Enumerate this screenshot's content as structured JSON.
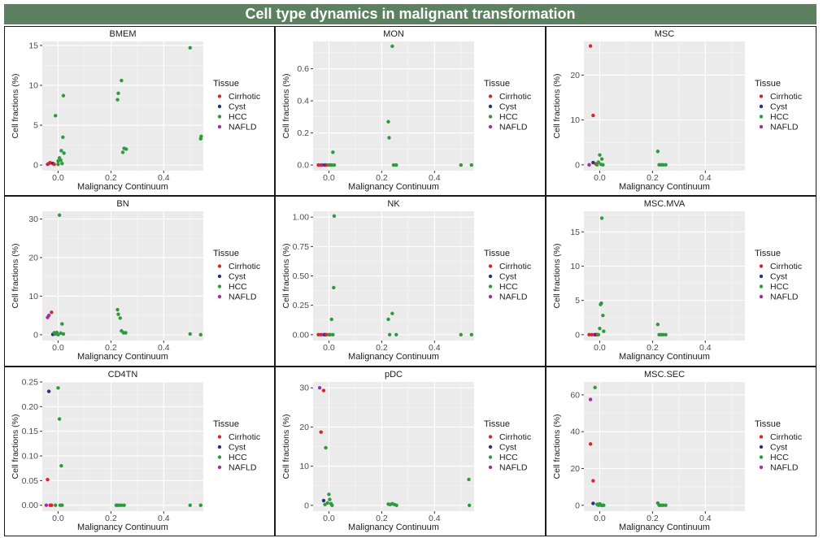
{
  "title": "Cell type dynamics in malignant transformation",
  "colors": {
    "Cirrhotic": "#d7262b",
    "Cyst": "#2b2f7e",
    "HCC": "#2e9a3e",
    "NAFLD": "#a32ea3",
    "title_bg": "#5c8160",
    "panel_bg": "#ebebeb"
  },
  "legend": {
    "title": "Tissue",
    "entries": [
      "Cirrhotic",
      "Cyst",
      "HCC",
      "NAFLD"
    ]
  },
  "chart_data": [
    {
      "type": "scatter",
      "title": "BMEM",
      "xlabel": "Malignancy Continuum",
      "ylabel": "Cell fractions (%)",
      "xlim": [
        -0.06,
        0.55
      ],
      "ylim": [
        -0.7,
        15.5
      ],
      "xticks": [
        0.0,
        0.2,
        0.4
      ],
      "xtick_labels": [
        "0.0",
        "0.2",
        "0.4"
      ],
      "yticks": [
        0,
        5,
        10,
        15
      ],
      "ytick_labels": [
        "0",
        "5",
        "10",
        "15"
      ],
      "points": [
        {
          "t": "NAFLD",
          "x": -0.04,
          "y": 0.1
        },
        {
          "t": "Cirrhotic",
          "x": -0.035,
          "y": 0.2
        },
        {
          "t": "Cirrhotic",
          "x": -0.03,
          "y": 0.3
        },
        {
          "t": "Cyst",
          "x": -0.02,
          "y": 0.2
        },
        {
          "t": "Cirrhotic",
          "x": -0.015,
          "y": 0.1
        },
        {
          "t": "HCC",
          "x": -0.01,
          "y": 6.2
        },
        {
          "t": "HCC",
          "x": 0.0,
          "y": 0.1
        },
        {
          "t": "HCC",
          "x": 0.0,
          "y": 0.5
        },
        {
          "t": "HCC",
          "x": 0.005,
          "y": 0.9
        },
        {
          "t": "HCC",
          "x": 0.01,
          "y": 0.6
        },
        {
          "t": "HCC",
          "x": 0.012,
          "y": 1.8
        },
        {
          "t": "HCC",
          "x": 0.015,
          "y": 0.2
        },
        {
          "t": "HCC",
          "x": 0.018,
          "y": 3.5
        },
        {
          "t": "HCC",
          "x": 0.02,
          "y": 8.7
        },
        {
          "t": "HCC",
          "x": 0.022,
          "y": 1.5
        },
        {
          "t": "HCC",
          "x": 0.225,
          "y": 8.2
        },
        {
          "t": "HCC",
          "x": 0.228,
          "y": 9.0
        },
        {
          "t": "HCC",
          "x": 0.24,
          "y": 10.6
        },
        {
          "t": "HCC",
          "x": 0.245,
          "y": 1.6
        },
        {
          "t": "HCC",
          "x": 0.25,
          "y": 2.1
        },
        {
          "t": "HCC",
          "x": 0.258,
          "y": 2.0
        },
        {
          "t": "HCC",
          "x": 0.5,
          "y": 14.7
        },
        {
          "t": "HCC",
          "x": 0.54,
          "y": 3.3
        },
        {
          "t": "HCC",
          "x": 0.542,
          "y": 3.6
        }
      ]
    },
    {
      "type": "scatter",
      "title": "MON",
      "xlabel": "Malignancy Continuum",
      "ylabel": "Cell fractions (%)",
      "xlim": [
        -0.06,
        0.55
      ],
      "ylim": [
        -0.035,
        0.77
      ],
      "xticks": [
        0.0,
        0.2,
        0.4
      ],
      "xtick_labels": [
        "0.0",
        "0.2",
        "0.4"
      ],
      "yticks": [
        0.0,
        0.2,
        0.4,
        0.6
      ],
      "ytick_labels": [
        "0.0",
        "0.2",
        "0.4",
        "0.6"
      ],
      "points": [
        {
          "t": "Cirrhotic",
          "x": -0.04,
          "y": 0.0
        },
        {
          "t": "Cirrhotic",
          "x": -0.03,
          "y": 0.0
        },
        {
          "t": "NAFLD",
          "x": -0.025,
          "y": 0.0
        },
        {
          "t": "Cyst",
          "x": -0.015,
          "y": 0.0
        },
        {
          "t": "Cirrhotic",
          "x": -0.01,
          "y": 0.0
        },
        {
          "t": "HCC",
          "x": 0.0,
          "y": 0.0
        },
        {
          "t": "HCC",
          "x": 0.005,
          "y": 0.0
        },
        {
          "t": "HCC",
          "x": 0.01,
          "y": 0.0
        },
        {
          "t": "HCC",
          "x": 0.015,
          "y": 0.08
        },
        {
          "t": "HCC",
          "x": 0.02,
          "y": 0.0
        },
        {
          "t": "HCC",
          "x": 0.225,
          "y": 0.27
        },
        {
          "t": "HCC",
          "x": 0.228,
          "y": 0.17
        },
        {
          "t": "HCC",
          "x": 0.24,
          "y": 0.74
        },
        {
          "t": "HCC",
          "x": 0.245,
          "y": 0.0
        },
        {
          "t": "HCC",
          "x": 0.255,
          "y": 0.0
        },
        {
          "t": "HCC",
          "x": 0.5,
          "y": 0.0
        },
        {
          "t": "HCC",
          "x": 0.54,
          "y": 0.0
        }
      ]
    },
    {
      "type": "scatter",
      "title": "MSC",
      "xlabel": "Malignancy Continuum",
      "ylabel": "Cell fractions (%)",
      "xlim": [
        -0.06,
        0.55
      ],
      "ylim": [
        -1.3,
        27.5
      ],
      "xticks": [
        0.0,
        0.2,
        0.4
      ],
      "xtick_labels": [
        "0.0",
        "0.2",
        "0.4"
      ],
      "yticks": [
        0,
        10,
        20
      ],
      "ytick_labels": [
        "0",
        "10",
        "20"
      ],
      "points": [
        {
          "t": "NAFLD",
          "x": -0.04,
          "y": 0.0
        },
        {
          "t": "Cirrhotic",
          "x": -0.035,
          "y": 26.5
        },
        {
          "t": "Cirrhotic",
          "x": -0.025,
          "y": 11.0
        },
        {
          "t": "Cyst",
          "x": -0.025,
          "y": 0.5
        },
        {
          "t": "Cirrhotic",
          "x": -0.015,
          "y": 0.2
        },
        {
          "t": "HCC",
          "x": -0.01,
          "y": 0.0
        },
        {
          "t": "HCC",
          "x": -0.005,
          "y": 0.6
        },
        {
          "t": "HCC",
          "x": 0.0,
          "y": 2.2
        },
        {
          "t": "HCC",
          "x": 0.005,
          "y": 0.1
        },
        {
          "t": "HCC",
          "x": 0.008,
          "y": 1.3
        },
        {
          "t": "HCC",
          "x": 0.012,
          "y": 0.0
        },
        {
          "t": "HCC",
          "x": 0.22,
          "y": 3.0
        },
        {
          "t": "HCC",
          "x": 0.225,
          "y": 0.0
        },
        {
          "t": "HCC",
          "x": 0.232,
          "y": 0.0
        },
        {
          "t": "HCC",
          "x": 0.24,
          "y": 0.0
        },
        {
          "t": "HCC",
          "x": 0.25,
          "y": 0.0
        }
      ]
    },
    {
      "type": "scatter",
      "title": "BN",
      "xlabel": "Malignancy Continuum",
      "ylabel": "Cell fractions (%)",
      "xlim": [
        -0.06,
        0.55
      ],
      "ylim": [
        -1.5,
        32
      ],
      "xticks": [
        0.0,
        0.2,
        0.4
      ],
      "xtick_labels": [
        "0.0",
        "0.2",
        "0.4"
      ],
      "yticks": [
        0,
        10,
        20,
        30
      ],
      "ytick_labels": [
        "0",
        "10",
        "20",
        "30"
      ],
      "points": [
        {
          "t": "NAFLD",
          "x": -0.04,
          "y": 4.5
        },
        {
          "t": "NAFLD",
          "x": -0.035,
          "y": 5.0
        },
        {
          "t": "Cirrhotic",
          "x": -0.025,
          "y": 5.8
        },
        {
          "t": "Cyst",
          "x": -0.02,
          "y": 0.1
        },
        {
          "t": "HCC",
          "x": -0.015,
          "y": 0.5
        },
        {
          "t": "HCC",
          "x": -0.01,
          "y": 0.2
        },
        {
          "t": "HCC",
          "x": -0.005,
          "y": 0.6
        },
        {
          "t": "HCC",
          "x": 0.0,
          "y": 0.0
        },
        {
          "t": "HCC",
          "x": 0.005,
          "y": 31.0
        },
        {
          "t": "HCC",
          "x": 0.01,
          "y": 0.4
        },
        {
          "t": "HCC",
          "x": 0.015,
          "y": 2.8
        },
        {
          "t": "HCC",
          "x": 0.02,
          "y": 0.2
        },
        {
          "t": "HCC",
          "x": 0.225,
          "y": 6.5
        },
        {
          "t": "HCC",
          "x": 0.228,
          "y": 5.3
        },
        {
          "t": "HCC",
          "x": 0.235,
          "y": 4.3
        },
        {
          "t": "HCC",
          "x": 0.24,
          "y": 1.0
        },
        {
          "t": "HCC",
          "x": 0.248,
          "y": 0.5
        },
        {
          "t": "HCC",
          "x": 0.256,
          "y": 0.5
        },
        {
          "t": "HCC",
          "x": 0.5,
          "y": 0.2
        },
        {
          "t": "HCC",
          "x": 0.54,
          "y": 0.0
        }
      ]
    },
    {
      "type": "scatter",
      "title": "NK",
      "xlabel": "Malignancy Continuum",
      "ylabel": "Cell fractions (%)",
      "xlim": [
        -0.06,
        0.55
      ],
      "ylim": [
        -0.05,
        1.05
      ],
      "xticks": [
        0.0,
        0.2,
        0.4
      ],
      "xtick_labels": [
        "0.0",
        "0.2",
        "0.4"
      ],
      "yticks": [
        0.0,
        0.25,
        0.5,
        0.75,
        1.0
      ],
      "ytick_labels": [
        "0.00",
        "0.25",
        "0.50",
        "0.75",
        "1.00"
      ],
      "points": [
        {
          "t": "Cirrhotic",
          "x": -0.04,
          "y": 0.0
        },
        {
          "t": "Cirrhotic",
          "x": -0.03,
          "y": 0.0
        },
        {
          "t": "NAFLD",
          "x": -0.02,
          "y": 0.0
        },
        {
          "t": "Cyst",
          "x": -0.015,
          "y": 0.0
        },
        {
          "t": "Cirrhotic",
          "x": -0.01,
          "y": 0.0
        },
        {
          "t": "HCC",
          "x": 0.0,
          "y": 0.0
        },
        {
          "t": "HCC",
          "x": 0.005,
          "y": 0.0
        },
        {
          "t": "HCC",
          "x": 0.01,
          "y": 0.13
        },
        {
          "t": "HCC",
          "x": 0.015,
          "y": 0.0
        },
        {
          "t": "HCC",
          "x": 0.018,
          "y": 0.4
        },
        {
          "t": "HCC",
          "x": 0.02,
          "y": 1.01
        },
        {
          "t": "HCC",
          "x": 0.225,
          "y": 0.13
        },
        {
          "t": "HCC",
          "x": 0.23,
          "y": 0.0
        },
        {
          "t": "HCC",
          "x": 0.24,
          "y": 0.18
        },
        {
          "t": "HCC",
          "x": 0.255,
          "y": 0.0
        },
        {
          "t": "HCC",
          "x": 0.5,
          "y": 0.0
        },
        {
          "t": "HCC",
          "x": 0.54,
          "y": 0.0
        }
      ]
    },
    {
      "type": "scatter",
      "title": "MSC.MVA",
      "xlabel": "Malignancy Continuum",
      "ylabel": "Cell fractions (%)",
      "xlim": [
        -0.06,
        0.55
      ],
      "ylim": [
        -0.85,
        18
      ],
      "xticks": [
        0.0,
        0.2,
        0.4
      ],
      "xtick_labels": [
        "0.0",
        "0.2",
        "0.4"
      ],
      "yticks": [
        0,
        5,
        10,
        15
      ],
      "ytick_labels": [
        "0",
        "5",
        "10",
        "15"
      ],
      "points": [
        {
          "t": "Cirrhotic",
          "x": -0.04,
          "y": 0.0
        },
        {
          "t": "Cirrhotic",
          "x": -0.03,
          "y": 0.0
        },
        {
          "t": "NAFLD",
          "x": -0.02,
          "y": 0.0
        },
        {
          "t": "Cyst",
          "x": -0.015,
          "y": 0.0
        },
        {
          "t": "Cirrhotic",
          "x": -0.01,
          "y": 0.0
        },
        {
          "t": "HCC",
          "x": -0.005,
          "y": 0.0
        },
        {
          "t": "HCC",
          "x": 0.0,
          "y": 0.9
        },
        {
          "t": "HCC",
          "x": 0.003,
          "y": 4.4
        },
        {
          "t": "HCC",
          "x": 0.006,
          "y": 4.6
        },
        {
          "t": "HCC",
          "x": 0.008,
          "y": 17.0
        },
        {
          "t": "HCC",
          "x": 0.012,
          "y": 2.8
        },
        {
          "t": "HCC",
          "x": 0.015,
          "y": 0.5
        },
        {
          "t": "HCC",
          "x": 0.22,
          "y": 1.5
        },
        {
          "t": "HCC",
          "x": 0.225,
          "y": 0.0
        },
        {
          "t": "HCC",
          "x": 0.232,
          "y": 0.0
        },
        {
          "t": "HCC",
          "x": 0.24,
          "y": 0.0
        },
        {
          "t": "HCC",
          "x": 0.25,
          "y": 0.0
        }
      ]
    },
    {
      "type": "scatter",
      "title": "CD4TN",
      "xlabel": "Malignancy Continuum",
      "ylabel": "Cell fractions (%)",
      "xlim": [
        -0.06,
        0.55
      ],
      "ylim": [
        -0.012,
        0.25
      ],
      "xticks": [
        0.0,
        0.2,
        0.4
      ],
      "xtick_labels": [
        "0.0",
        "0.2",
        "0.4"
      ],
      "yticks": [
        0.0,
        0.05,
        0.1,
        0.15,
        0.2,
        0.25
      ],
      "ytick_labels": [
        "0.00",
        "0.05",
        "0.10",
        "0.15",
        "0.20",
        "0.25"
      ],
      "points": [
        {
          "t": "NAFLD",
          "x": -0.045,
          "y": 0.0
        },
        {
          "t": "Cirrhotic",
          "x": -0.04,
          "y": 0.052
        },
        {
          "t": "Cirrhotic",
          "x": -0.03,
          "y": 0.0
        },
        {
          "t": "Cyst",
          "x": -0.035,
          "y": 0.231
        },
        {
          "t": "Cirrhotic",
          "x": -0.025,
          "y": 0.0
        },
        {
          "t": "HCC",
          "x": -0.01,
          "y": 0.0
        },
        {
          "t": "HCC",
          "x": 0.0,
          "y": 0.238
        },
        {
          "t": "HCC",
          "x": 0.005,
          "y": 0.175
        },
        {
          "t": "HCC",
          "x": 0.008,
          "y": 0.0
        },
        {
          "t": "HCC",
          "x": 0.012,
          "y": 0.08
        },
        {
          "t": "HCC",
          "x": 0.015,
          "y": 0.0
        },
        {
          "t": "HCC",
          "x": 0.22,
          "y": 0.0
        },
        {
          "t": "HCC",
          "x": 0.225,
          "y": 0.0
        },
        {
          "t": "HCC",
          "x": 0.232,
          "y": 0.0
        },
        {
          "t": "HCC",
          "x": 0.24,
          "y": 0.0
        },
        {
          "t": "HCC",
          "x": 0.25,
          "y": 0.0
        },
        {
          "t": "HCC",
          "x": 0.5,
          "y": 0.0
        },
        {
          "t": "HCC",
          "x": 0.54,
          "y": 0.0
        }
      ]
    },
    {
      "type": "scatter",
      "title": "pDC",
      "xlabel": "Malignancy Continuum",
      "ylabel": "Cell fractions (%)",
      "xlim": [
        -0.06,
        0.55
      ],
      "ylim": [
        -1.5,
        31.5
      ],
      "xticks": [
        0.0,
        0.2,
        0.4
      ],
      "xtick_labels": [
        "0.0",
        "0.2",
        "0.4"
      ],
      "yticks": [
        0,
        10,
        20,
        30
      ],
      "ytick_labels": [
        "0",
        "10",
        "20",
        "30"
      ],
      "points": [
        {
          "t": "NAFLD",
          "x": -0.035,
          "y": 30.0
        },
        {
          "t": "Cirrhotic",
          "x": -0.02,
          "y": 29.3
        },
        {
          "t": "Cirrhotic",
          "x": -0.03,
          "y": 18.7
        },
        {
          "t": "Cyst",
          "x": -0.02,
          "y": 1.2
        },
        {
          "t": "HCC",
          "x": -0.015,
          "y": 0.2
        },
        {
          "t": "HCC",
          "x": -0.012,
          "y": 14.7
        },
        {
          "t": "HCC",
          "x": -0.005,
          "y": 0.6
        },
        {
          "t": "HCC",
          "x": 0.0,
          "y": 2.8
        },
        {
          "t": "HCC",
          "x": 0.003,
          "y": 1.5
        },
        {
          "t": "HCC",
          "x": 0.008,
          "y": 0.4
        },
        {
          "t": "HCC",
          "x": 0.012,
          "y": 0.0
        },
        {
          "t": "HCC",
          "x": 0.225,
          "y": 0.3
        },
        {
          "t": "HCC",
          "x": 0.232,
          "y": 0.2
        },
        {
          "t": "HCC",
          "x": 0.24,
          "y": 0.4
        },
        {
          "t": "HCC",
          "x": 0.248,
          "y": 0.2
        },
        {
          "t": "HCC",
          "x": 0.256,
          "y": 0.0
        },
        {
          "t": "HCC",
          "x": 0.53,
          "y": 6.6
        },
        {
          "t": "HCC",
          "x": 0.532,
          "y": 0.0
        }
      ]
    },
    {
      "type": "scatter",
      "title": "MSC.SEC",
      "xlabel": "Malignancy Continuum",
      "ylabel": "Cell fractions (%)",
      "xlim": [
        -0.06,
        0.55
      ],
      "ylim": [
        -3.2,
        67
      ],
      "xticks": [
        0.0,
        0.2,
        0.4
      ],
      "xtick_labels": [
        "0.0",
        "0.2",
        "0.4"
      ],
      "yticks": [
        0,
        20,
        40,
        60
      ],
      "ytick_labels": [
        "0",
        "20",
        "40",
        "60"
      ],
      "points": [
        {
          "t": "NAFLD",
          "x": -0.035,
          "y": 57.5
        },
        {
          "t": "Cirrhotic",
          "x": -0.035,
          "y": 33.3
        },
        {
          "t": "Cirrhotic",
          "x": -0.025,
          "y": 13.3
        },
        {
          "t": "Cyst",
          "x": -0.025,
          "y": 1.0
        },
        {
          "t": "HCC",
          "x": -0.018,
          "y": 64.0
        },
        {
          "t": "HCC",
          "x": -0.01,
          "y": 0.5
        },
        {
          "t": "HCC",
          "x": -0.005,
          "y": 0.0
        },
        {
          "t": "HCC",
          "x": 0.0,
          "y": 0.8
        },
        {
          "t": "HCC",
          "x": 0.005,
          "y": 0.0
        },
        {
          "t": "HCC",
          "x": 0.01,
          "y": 0.0
        },
        {
          "t": "HCC",
          "x": 0.015,
          "y": 0.0
        },
        {
          "t": "HCC",
          "x": 0.22,
          "y": 1.2
        },
        {
          "t": "HCC",
          "x": 0.225,
          "y": 0.0
        },
        {
          "t": "HCC",
          "x": 0.232,
          "y": 0.0
        },
        {
          "t": "HCC",
          "x": 0.24,
          "y": 0.0
        },
        {
          "t": "HCC",
          "x": 0.25,
          "y": 0.0
        }
      ]
    }
  ]
}
